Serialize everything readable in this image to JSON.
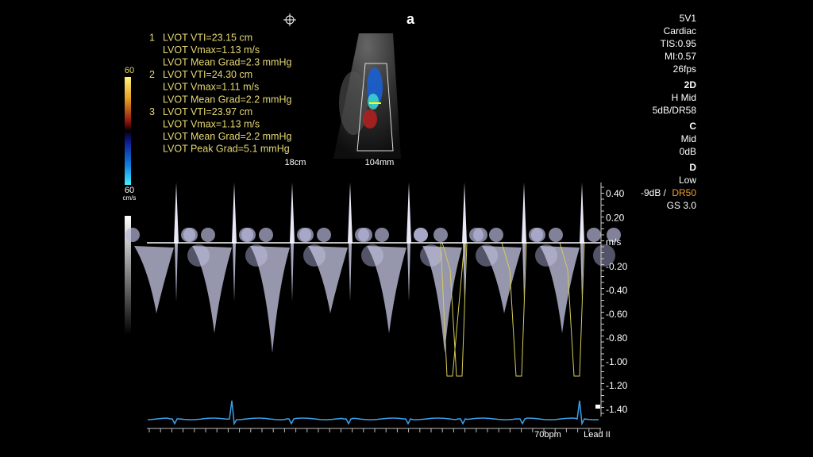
{
  "header": {
    "logo": "a"
  },
  "measurements": [
    {
      "index": "1",
      "lines": [
        "LVOT VTI=23.15 cm",
        "LVOT Vmax=1.13 m/s",
        "LVOT Mean Grad=2.3 mmHg"
      ]
    },
    {
      "index": "2",
      "lines": [
        "LVOT VTI=24.30 cm",
        "LVOT Vmax=1.11 m/s",
        "LVOT Mean Grad=2.2 mmHg"
      ]
    },
    {
      "index": "3",
      "lines": [
        "LVOT VTI=23.97 cm",
        "LVOT Vmax=1.13 m/s",
        "LVOT Mean Grad=2.2 mmHg",
        "LVOT Peak Grad=5.1 mmHg"
      ]
    }
  ],
  "color_bar": {
    "top": "60",
    "bottom": "60",
    "unit": "cm/s"
  },
  "image_labels": {
    "depth": "18cm",
    "width": "104mm"
  },
  "settings": {
    "general": [
      "5V1",
      "Cardiac",
      "TIS:0.95",
      "MI:0.57",
      "26fps"
    ],
    "mode_2d": {
      "title": "2D",
      "lines": [
        "H Mid",
        "5dB/DR58"
      ]
    },
    "mode_c": {
      "title": "C",
      "lines": [
        "Mid",
        "0dB"
      ]
    },
    "mode_d": {
      "title": "D",
      "lines": [
        "Low"
      ],
      "gain": "-9dB /",
      "range": "DR50",
      "extra": "GS 3.0"
    }
  },
  "doppler_scale": {
    "unit": "m/s",
    "positive": [
      "0.40",
      "0.20"
    ],
    "negative": [
      "-0.20",
      "-0.40",
      "-0.60",
      "-0.80",
      "-1.00",
      "-1.20",
      "-1.40"
    ]
  },
  "ecg": {
    "heart_rate": "70bpm",
    "lead": "Lead II"
  }
}
